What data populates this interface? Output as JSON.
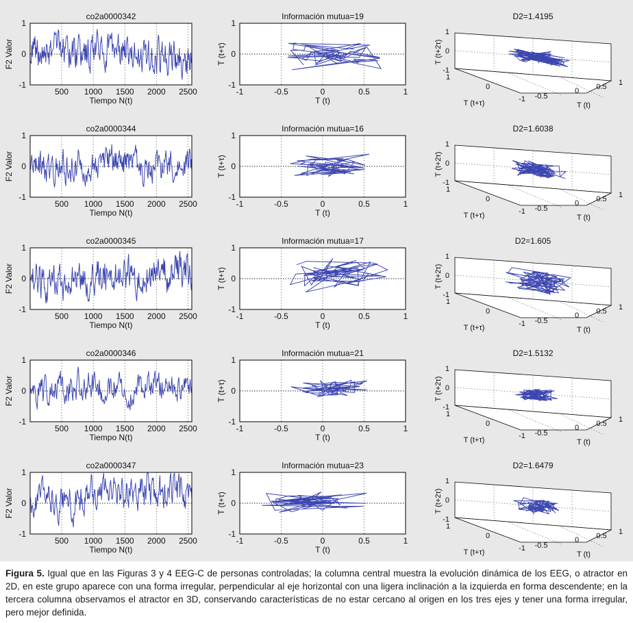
{
  "caption": {
    "label": "Figura 5.",
    "text": "Igual que en las Figuras 3 y 4 EEG-C de personas controladas; la columna central muestra la evolución dinámica de los EEG, o atractor en 2D, en este grupo aparece con una forma irregular, perpendicular al eje horizontal con una ligera inclinación a la izquierda en forma descendente; en la tercera columna observamos el atractor en 3D, conservando características de no estar cercano al origen en los tres ejes y tener una forma irregular, pero mejor definida."
  },
  "colors": {
    "series": "#3c46b0",
    "frame": "#000000",
    "grid": "#555555",
    "background": "#e8e8e8",
    "plot": "#ffffff"
  },
  "chart_data": [
    {
      "type": "line",
      "title": "co2a0000342",
      "xlabel": "Tiempo N(t)",
      "ylabel": "F2      Valor",
      "xlim": [
        1,
        2560
      ],
      "ylim": [
        -1,
        1
      ],
      "xticks": [
        "500",
        "1000",
        "1500",
        "2000",
        "2500"
      ],
      "yticks": [
        "1",
        "0",
        "-1"
      ],
      "series": [
        {
          "name": "co2a0000342",
          "seed": 342,
          "amplitude": 0.48,
          "drift": 0.06,
          "samples": 300
        }
      ]
    },
    {
      "type": "line",
      "title": "Información mutua=19",
      "xlabel": "T (t)",
      "ylabel": "T (t+τ)",
      "xlim": [
        -1,
        1
      ],
      "ylim": [
        -1,
        1
      ],
      "xticks": [
        "-1",
        "-0.5",
        "0",
        "0.5",
        "1"
      ],
      "yticks": [
        "1",
        "0",
        "-1"
      ],
      "series": [
        {
          "name": "atractor 2D",
          "seed": 19,
          "xrange": [
            -0.6,
            0.8
          ],
          "yrange": [
            -0.55,
            0.5
          ],
          "points": 55
        }
      ]
    },
    {
      "type": "line",
      "title": "D2=1.4195",
      "xlabel": "T (t+τ)",
      "ylabel": "T (t+2τ)",
      "zlabel": "T (t)",
      "xticks": [
        "1",
        "0",
        "-1"
      ],
      "yticks": [
        "-0.5",
        "0",
        "0.5",
        "1"
      ],
      "zticks": [
        "1",
        "0",
        "-1"
      ],
      "series": [
        {
          "name": "atractor 3D",
          "seed": 1419,
          "spread": 0.5,
          "height": 0.25,
          "points": 80
        }
      ]
    },
    {
      "type": "line",
      "title": "co2a0000344",
      "xlabel": "Tiempo N(t)",
      "ylabel": "F2      Valor",
      "xlim": [
        1,
        2560
      ],
      "ylim": [
        -1,
        1
      ],
      "xticks": [
        "500",
        "1000",
        "1500",
        "2000",
        "2500"
      ],
      "yticks": [
        "1",
        "0",
        "-1"
      ],
      "series": [
        {
          "name": "co2a0000344",
          "seed": 344,
          "amplitude": 0.42,
          "drift": 0.05,
          "samples": 300
        }
      ]
    },
    {
      "type": "line",
      "title": "Información mutua=16",
      "xlabel": "T (t)",
      "ylabel": "T (t+τ)",
      "xlim": [
        -1,
        1
      ],
      "ylim": [
        -1,
        1
      ],
      "xticks": [
        "-1",
        "-0.5",
        "0",
        "0.5",
        "1"
      ],
      "yticks": [
        "1",
        "0",
        "-1"
      ],
      "series": [
        {
          "name": "atractor 2D",
          "seed": 16,
          "xrange": [
            -0.55,
            0.7
          ],
          "yrange": [
            -0.4,
            0.45
          ],
          "points": 55
        }
      ]
    },
    {
      "type": "line",
      "title": "D2=1.6038",
      "xlabel": "T (t+τ)",
      "ylabel": "T (t+2τ)",
      "zlabel": "T (t)",
      "xticks": [
        "1",
        "0",
        "-1"
      ],
      "yticks": [
        "-0.5",
        "0",
        "0.5",
        "1"
      ],
      "zticks": [
        "1",
        "0",
        "-1"
      ],
      "series": [
        {
          "name": "atractor 3D",
          "seed": 1603,
          "spread": 0.45,
          "height": 0.35,
          "points": 80
        }
      ]
    },
    {
      "type": "line",
      "title": "co2a0000345",
      "xlabel": "Tiempo N(t)",
      "ylabel": "F2      Valor",
      "xlim": [
        1,
        2560
      ],
      "ylim": [
        -1,
        1
      ],
      "xticks": [
        "500",
        "1000",
        "1500",
        "2000",
        "2500"
      ],
      "yticks": [
        "1",
        "0",
        "-1"
      ],
      "series": [
        {
          "name": "co2a0000345",
          "seed": 345,
          "amplitude": 0.5,
          "drift": 0.12,
          "samples": 300
        }
      ]
    },
    {
      "type": "line",
      "title": "Información mutua=17",
      "xlabel": "T (t)",
      "ylabel": "T (t+τ)",
      "xlim": [
        -1,
        1
      ],
      "ylim": [
        -1,
        1
      ],
      "xticks": [
        "-1",
        "-0.5",
        "0",
        "0.5",
        "1"
      ],
      "yticks": [
        "1",
        "0",
        "-1"
      ],
      "series": [
        {
          "name": "atractor 2D",
          "seed": 17,
          "xrange": [
            -0.55,
            0.85
          ],
          "yrange": [
            -0.5,
            0.75
          ],
          "points": 55
        }
      ]
    },
    {
      "type": "line",
      "title": "D2=1.605",
      "xlabel": "T (t+τ)",
      "ylabel": "T (t+2τ)",
      "zlabel": "T (t)",
      "xticks": [
        "1",
        "0",
        "-1"
      ],
      "yticks": [
        "-0.5",
        "0",
        "0.5",
        "1"
      ],
      "zticks": [
        "1",
        "0",
        "-1"
      ],
      "series": [
        {
          "name": "atractor 3D",
          "seed": 1605,
          "spread": 0.55,
          "height": 0.5,
          "points": 80
        }
      ]
    },
    {
      "type": "line",
      "title": "co2a0000346",
      "xlabel": "Tiempo N(t)",
      "ylabel": "F2      Valor",
      "xlim": [
        1,
        2560
      ],
      "ylim": [
        -1,
        1
      ],
      "xticks": [
        "500",
        "1000",
        "1500",
        "2000",
        "2500"
      ],
      "yticks": [
        "1",
        "0",
        "-1"
      ],
      "series": [
        {
          "name": "co2a0000346",
          "seed": 346,
          "amplitude": 0.38,
          "drift": 0.05,
          "samples": 300
        }
      ]
    },
    {
      "type": "line",
      "title": "Información mutua=21",
      "xlabel": "T (t)",
      "ylabel": "T (t+τ)",
      "xlim": [
        -1,
        1
      ],
      "ylim": [
        -1,
        1
      ],
      "xticks": [
        "-1",
        "-0.5",
        "0",
        "0.5",
        "1"
      ],
      "yticks": [
        "1",
        "0",
        "-1"
      ],
      "series": [
        {
          "name": "atractor 2D",
          "seed": 21,
          "xrange": [
            -0.4,
            0.6
          ],
          "yrange": [
            -0.35,
            0.5
          ],
          "points": 50
        }
      ]
    },
    {
      "type": "line",
      "title": "D2=1.5132",
      "xlabel": "T (t+τ)",
      "ylabel": "T (t+2τ)",
      "zlabel": "T (t)",
      "xticks": [
        "1",
        "0",
        "-1"
      ],
      "yticks": [
        "-0.5",
        "0",
        "0.5",
        "1"
      ],
      "zticks": [
        "1",
        "0",
        "-1"
      ],
      "series": [
        {
          "name": "atractor 3D",
          "seed": 1513,
          "spread": 0.35,
          "height": 0.3,
          "points": 70
        }
      ]
    },
    {
      "type": "line",
      "title": "co2a0000347",
      "xlabel": "Tiempo N(t)",
      "ylabel": "F2      Valor",
      "xlim": [
        1,
        2560
      ],
      "ylim": [
        -1,
        1
      ],
      "xticks": [
        "500",
        "1000",
        "1500",
        "2000",
        "2500"
      ],
      "yticks": [
        "1",
        "0",
        "-1"
      ],
      "series": [
        {
          "name": "co2a0000347",
          "seed": 347,
          "amplitude": 0.45,
          "drift": 0.08,
          "samples": 300
        }
      ]
    },
    {
      "type": "line",
      "title": "Información mutua=23",
      "xlabel": "T (t)",
      "ylabel": "T (t+τ)",
      "xlim": [
        -1,
        1
      ],
      "ylim": [
        -1,
        1
      ],
      "xticks": [
        "-1",
        "-0.5",
        "0",
        "0.5",
        "1"
      ],
      "yticks": [
        "1",
        "0",
        "-1"
      ],
      "series": [
        {
          "name": "atractor 2D",
          "seed": 23,
          "xrange": [
            -0.9,
            0.62
          ],
          "yrange": [
            -0.35,
            0.4
          ],
          "points": 50
        }
      ]
    },
    {
      "type": "line",
      "title": "D2=1.6479",
      "xlabel": "T (t+τ)",
      "ylabel": "T (t+2τ)",
      "zlabel": "T (t)",
      "xticks": [
        "1",
        "0",
        "-1"
      ],
      "yticks": [
        "-0.5",
        "0",
        "0.5",
        "1"
      ],
      "zticks": [
        "1",
        "0",
        "-1"
      ],
      "series": [
        {
          "name": "atractor 3D",
          "seed": 1648,
          "spread": 0.4,
          "height": 0.35,
          "points": 70
        }
      ]
    }
  ]
}
